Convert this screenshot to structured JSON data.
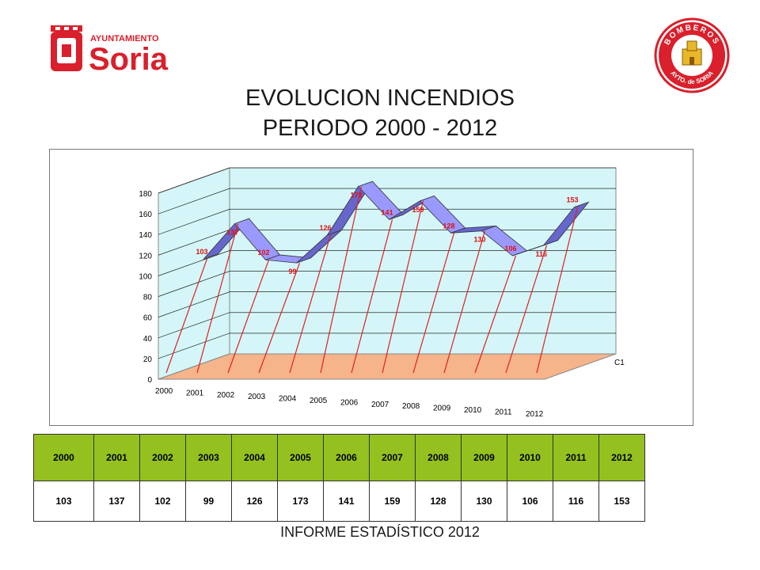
{
  "header": {
    "left_logo_text_small": "AYUNTAMIENTO",
    "left_logo_text_big": "Soria",
    "right_logo_text_top": "BOMBEROS",
    "right_logo_text_bottom": "AYTO. de SORIA",
    "brand_red": "#d9202c"
  },
  "title_line1": "EVOLUCION INCENDIOS",
  "title_line2": "PERIODO 2000 - 2012",
  "chart_data": {
    "type": "area",
    "title": "EVOLUCION INCENDIOS PERIODO 2000 - 2012",
    "series_label": "C1",
    "categories": [
      "2000",
      "2001",
      "2002",
      "2003",
      "2004",
      "2005",
      "2006",
      "2007",
      "2008",
      "2009",
      "2010",
      "2011",
      "2012"
    ],
    "values": [
      103,
      137,
      102,
      99,
      126,
      173,
      141,
      159,
      128,
      130,
      106,
      116,
      153
    ],
    "ylim": [
      0,
      180
    ],
    "yticks": [
      0,
      20,
      40,
      60,
      80,
      100,
      120,
      140,
      160,
      180
    ],
    "grid": true,
    "style": "3d-ribbon",
    "colors": {
      "ribbon_front": "#9999ff",
      "ribbon_top": "#6666cc",
      "wall": "#d4f6f8",
      "floor": "#f5b48a",
      "droplines": "#e02020",
      "data_labels": "#e01010"
    }
  },
  "table": {
    "header_color": "#94c11f",
    "years": [
      "2000",
      "2001",
      "2002",
      "2003",
      "2004",
      "2005",
      "2006",
      "2007",
      "2008",
      "2009",
      "2010",
      "2011",
      "2012"
    ],
    "values": [
      "103",
      "137",
      "102",
      "99",
      "126",
      "173",
      "141",
      "159",
      "128",
      "130",
      "106",
      "116",
      "153"
    ]
  },
  "footer": "INFORME ESTADÍSTICO 2012"
}
